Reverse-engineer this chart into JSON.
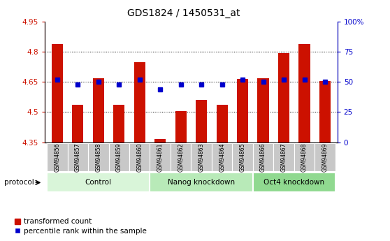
{
  "title": "GDS1824 / 1450531_at",
  "samples": [
    "GSM94856",
    "GSM94857",
    "GSM94858",
    "GSM94859",
    "GSM94860",
    "GSM94861",
    "GSM94862",
    "GSM94863",
    "GSM94864",
    "GSM94865",
    "GSM94866",
    "GSM94867",
    "GSM94868",
    "GSM94869"
  ],
  "bar_values": [
    4.84,
    4.535,
    4.67,
    4.535,
    4.75,
    4.365,
    4.505,
    4.56,
    4.535,
    4.665,
    4.67,
    4.795,
    4.84,
    4.655
  ],
  "dot_values": [
    52,
    48,
    50,
    48,
    52,
    44,
    48,
    48,
    48,
    52,
    50,
    52,
    52,
    50
  ],
  "groups": [
    {
      "label": "Control",
      "start": 0,
      "end": 5,
      "color": "#d9f5d9"
    },
    {
      "label": "Nanog knockdown",
      "start": 5,
      "end": 10,
      "color": "#b8eab8"
    },
    {
      "label": "Oct4 knockdown",
      "start": 10,
      "end": 14,
      "color": "#90d990"
    }
  ],
  "ylim": [
    4.35,
    4.95
  ],
  "y2lim": [
    0,
    100
  ],
  "yticks": [
    4.35,
    4.5,
    4.65,
    4.8,
    4.95
  ],
  "ytick_labels": [
    "4.35",
    "4.5",
    "4.65",
    "4.8",
    "4.95"
  ],
  "y2ticks": [
    0,
    25,
    50,
    75,
    100
  ],
  "y2tick_labels": [
    "0",
    "25",
    "50",
    "75",
    "100%"
  ],
  "bar_color": "#cc1100",
  "dot_color": "#0000cc",
  "bar_width": 0.55,
  "background_color": "#ffffff",
  "tick_label_bg": "#c8c8c8",
  "legend_items": [
    "transformed count",
    "percentile rank within the sample"
  ],
  "protocol_label": "protocol"
}
